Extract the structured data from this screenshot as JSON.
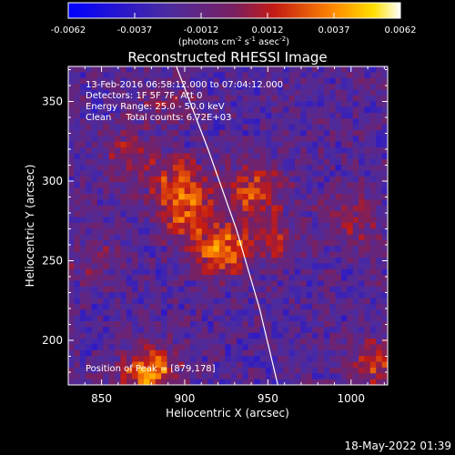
{
  "colorbar": {
    "ticks": [
      "-0.0062",
      "-0.0037",
      "-0.0012",
      "0.0012",
      "0.0037",
      "0.0062"
    ],
    "units_label": "(photons cm",
    "units_exp1": "-2",
    "units_mid1": " s",
    "units_exp2": "-1",
    "units_mid2": " asec",
    "units_exp3": "-2",
    "units_end": ")"
  },
  "chart_data": {
    "type": "heatmap",
    "title": "Reconstructed RHESSI Image",
    "xlabel": "Heliocentric X (arcsec)",
    "ylabel": "Heliocentric Y (arcsec)",
    "xlim": [
      830,
      1022
    ],
    "ylim": [
      172,
      372
    ],
    "x_ticks": [
      850,
      900,
      950,
      1000
    ],
    "y_ticks": [
      200,
      250,
      300,
      350
    ],
    "colorbar_range": [
      -0.0062,
      0.0062
    ],
    "annotations": [
      "13-Feb-2016 06:58:12.000 to 07:04:12.000",
      "Detectors: 1F 5F 7F, Att 0",
      "Energy Range: 25.0 - 50.0 keV",
      "Clean     Total counts: 6.72E+03"
    ],
    "peak_label": "Position of Peak = [879,178]",
    "peak": [
      879,
      178
    ],
    "sources": [
      {
        "x": 897,
        "y": 298,
        "amp": 0.0044
      },
      {
        "x": 902,
        "y": 277,
        "amp": 0.0036
      },
      {
        "x": 923,
        "y": 256,
        "amp": 0.0053
      },
      {
        "x": 941,
        "y": 295,
        "amp": 0.0042
      },
      {
        "x": 952,
        "y": 265,
        "amp": 0.003
      },
      {
        "x": 879,
        "y": 180,
        "amp": 0.006
      },
      {
        "x": 867,
        "y": 315,
        "amp": 0.0026
      },
      {
        "x": 1015,
        "y": 185,
        "amp": 0.0033
      },
      {
        "x": 1000,
        "y": 275,
        "amp": 0.0026
      },
      {
        "x": 846,
        "y": 250,
        "amp": 0.0016
      },
      {
        "x": 888,
        "y": 348,
        "amp": 0.0016
      }
    ],
    "limb_points": [
      [
        895,
        372
      ],
      [
        914,
        320
      ],
      [
        931,
        270
      ],
      [
        945,
        220
      ],
      [
        956,
        172
      ]
    ]
  },
  "footer": {
    "date": "18-May-2022 01:39"
  }
}
